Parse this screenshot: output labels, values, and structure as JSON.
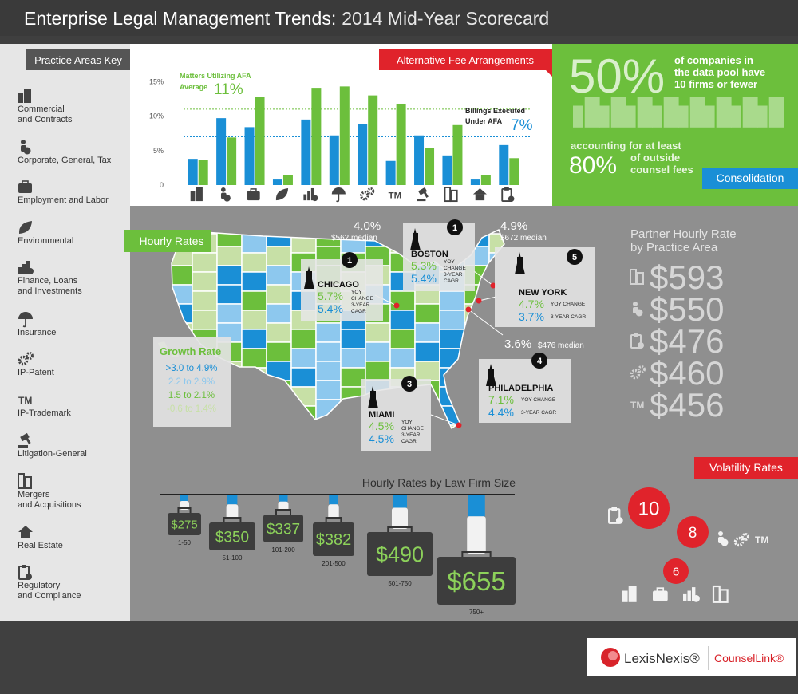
{
  "header": {
    "title_bold": "Enterprise Legal Management Trends:",
    "title_light": "2014 Mid-Year Scorecard"
  },
  "trademark_symbol": "TM",
  "practice_areas": {
    "title": "Practice Areas Key",
    "items": [
      [
        "Commercial",
        "and Contracts"
      ],
      [
        "Corporate, General, Tax"
      ],
      [
        "Employment and Labor"
      ],
      [
        "Environmental"
      ],
      [
        "Finance, Loans",
        "and Investments"
      ],
      [
        "Insurance"
      ],
      [
        "IP-Patent"
      ],
      [
        "IP-Trademark"
      ],
      [
        "Litigation-General"
      ],
      [
        "Mergers",
        "and Acquisitions"
      ],
      [
        "Real Estate"
      ],
      [
        "Regulatory",
        "and Compliance"
      ]
    ]
  },
  "chart_data": [
    {
      "type": "bar",
      "title": "Alternative Fee Arrangements",
      "categories": [
        null,
        null,
        null,
        null,
        null,
        null,
        null,
        null,
        null,
        null,
        null,
        null
      ],
      "series": [
        {
          "color": "#1a8fd6",
          "values": [
            3.8,
            9.7,
            8.4,
            0.8,
            9.5,
            7.2,
            8.9,
            3.5,
            7.2,
            4.3,
            0.8,
            5.8
          ]
        },
        {
          "color": "#6cbf3c",
          "values": [
            3.7,
            6.9,
            12.8,
            1.5,
            14.1,
            14.3,
            13.0,
            11.8,
            5.4,
            8.7,
            1.4,
            3.9
          ]
        }
      ],
      "ylim": [
        0,
        15.5
      ],
      "yticks": [
        0,
        {
          "value": 5,
          "label": "5%"
        },
        {
          "value": 10,
          "label": "10%"
        },
        {
          "value": 15,
          "label": "15%"
        }
      ],
      "reference_lines": [
        {
          "value": 11,
          "label": "11%",
          "color": "#6cbf3c",
          "text": [
            "Matters Utilizing AFA",
            "Average"
          ]
        },
        {
          "value": 7,
          "label": "7%",
          "color": "#1a8fd6",
          "text": [
            "Billings Executed",
            "Under AFA"
          ]
        }
      ]
    }
  ],
  "consolidation": {
    "big1": "50%",
    "text1": [
      "of companies in",
      "the data pool have",
      "10 firms or fewer"
    ],
    "text2": "accounting for at least",
    "big2": "80%",
    "text3": [
      "of outside",
      "counsel fees"
    ],
    "tab": "Consolidation"
  },
  "hourly_rates": {
    "tab": "Hourly Rates",
    "growth_legend": {
      "title": "Growth Rate",
      "ranges": [
        {
          "label": ">3.0 to 4.9%",
          "color": "#1a8fd6"
        },
        {
          "label": "2.2 to 2.9%",
          "color": "#8dc8ee"
        },
        {
          "label": "1.5 to 2.1%",
          "color": "#6cbf3c"
        },
        {
          "label": "-0.6 to 1.4%",
          "color": "#c7e0a6"
        }
      ]
    },
    "cities": [
      {
        "rank": "1",
        "name": "CHICAGO",
        "yoy": "5.7%",
        "yoy_label": [
          "YOY",
          "CHANGE"
        ],
        "cagr": "5.4%",
        "cagr_label": [
          "3-YEAR",
          "CAGR"
        ]
      },
      {
        "rank": "1",
        "name": "BOSTON",
        "yoy": "5.3%",
        "yoy_label": [
          "YOY",
          "CHANGE"
        ],
        "cagr": "5.4%",
        "cagr_label": [
          "3-YEAR",
          "CAGR"
        ]
      },
      {
        "rank": "5",
        "name": "NEW YORK",
        "yoy": "4.7%",
        "yoy_label": [
          "YOY CHANGE"
        ],
        "cagr": "3.7%",
        "cagr_label": [
          "3-YEAR CAGR"
        ]
      },
      {
        "rank": "4",
        "name": "PHILADELPHIA",
        "yoy": "7.1%",
        "yoy_label": [
          "YOY CHANGE"
        ],
        "cagr": "4.4%",
        "cagr_label": [
          "3-YEAR CAGR"
        ]
      },
      {
        "rank": "3",
        "name": "MIAMI",
        "yoy": "4.5%",
        "yoy_label": [
          "YOY",
          "CHANGE"
        ],
        "cagr": "4.5%",
        "cagr_label": [
          "3-YEAR",
          "CAGR"
        ]
      }
    ],
    "medians": [
      {
        "pct": "4.0%",
        "median": "$562 median"
      },
      {
        "pct": "4.9%",
        "median": "$672 median"
      },
      {
        "pct": "3.6%",
        "median": "$476 median"
      }
    ]
  },
  "partner_rates": {
    "title": [
      "Partner Hourly Rate",
      "by Practice Area"
    ],
    "rates": [
      "$593",
      "$550",
      "$476",
      "$460",
      "$456"
    ]
  },
  "firm_size": {
    "title": "Hourly Rates by Law Firm Size",
    "firms": [
      {
        "rate": "$275",
        "size": "1-50"
      },
      {
        "rate": "$350",
        "size": "51-100"
      },
      {
        "rate": "$337",
        "size": "101-200"
      },
      {
        "rate": "$382",
        "size": "201-500"
      },
      {
        "rate": "$490",
        "size": "501-750"
      },
      {
        "rate": "$655",
        "size": "750+"
      }
    ]
  },
  "volatility": {
    "tab": "Volatility Rates",
    "levels": [
      "10",
      "8",
      "6"
    ]
  },
  "footer": {
    "brand": "LexisNexis®",
    "product": "CounselLink®"
  }
}
